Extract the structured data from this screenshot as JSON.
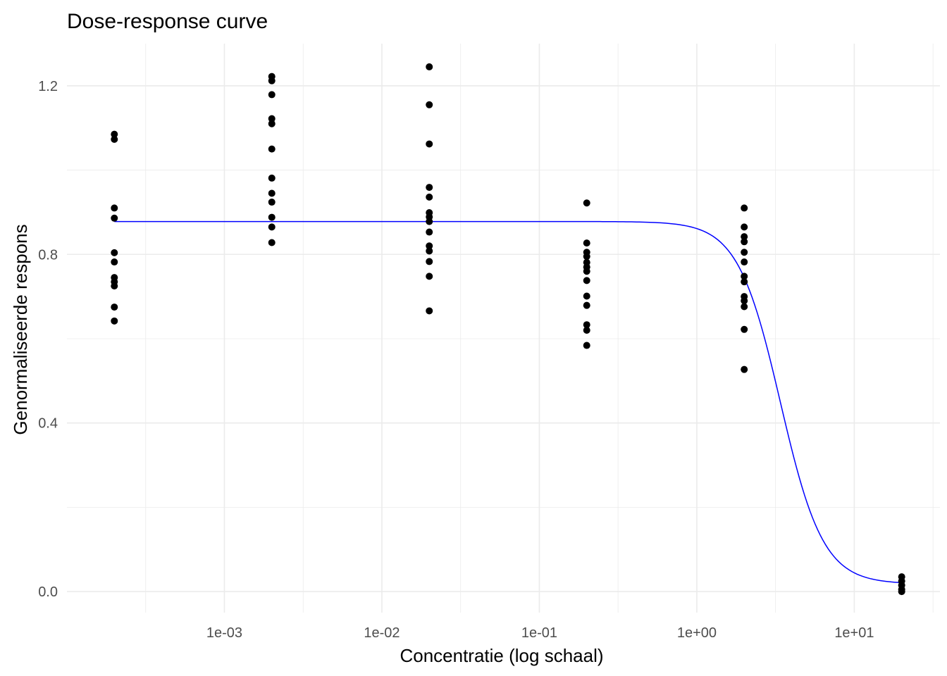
{
  "chart_data": {
    "type": "scatter",
    "title": "Dose-response curve",
    "xlabel": "Concentratie (log schaal)",
    "ylabel": "Genormaliseerde respons",
    "x_scale": "log10",
    "xlim": [
      0.0001,
      35
    ],
    "ylim": [
      -0.05,
      1.3
    ],
    "x_ticks": [
      {
        "value": 0.001,
        "label": "1e-03"
      },
      {
        "value": 0.01,
        "label": "1e-02"
      },
      {
        "value": 0.1,
        "label": "1e-01"
      },
      {
        "value": 1,
        "label": "1e+00"
      },
      {
        "value": 10,
        "label": "1e+01"
      }
    ],
    "y_ticks": [
      {
        "value": 0.0,
        "label": "0.0"
      },
      {
        "value": 0.4,
        "label": "0.4"
      },
      {
        "value": 0.8,
        "label": "0.8"
      },
      {
        "value": 1.2,
        "label": "1.2"
      }
    ],
    "grid": true,
    "points_color": "#000000",
    "curve_color": "#0000ff",
    "points": [
      {
        "x": 0.0002,
        "y": [
          1.085,
          1.073,
          0.91,
          0.886,
          0.804,
          0.782,
          0.745,
          0.735,
          0.725,
          0.675,
          0.642
        ]
      },
      {
        "x": 0.002,
        "y": [
          1.222,
          1.212,
          1.179,
          1.122,
          1.11,
          1.05,
          0.981,
          0.945,
          0.924,
          0.888,
          0.865,
          0.828
        ]
      },
      {
        "x": 0.02,
        "y": [
          1.245,
          1.155,
          1.062,
          0.959,
          0.936,
          0.899,
          0.889,
          0.878,
          0.853,
          0.82,
          0.808,
          0.783,
          0.748,
          0.666
        ]
      },
      {
        "x": 0.2,
        "y": [
          0.922,
          0.827,
          0.805,
          0.795,
          0.781,
          0.77,
          0.76,
          0.738,
          0.701,
          0.679,
          0.633,
          0.62,
          0.584
        ]
      },
      {
        "x": 2,
        "y": [
          0.91,
          0.865,
          0.842,
          0.83,
          0.805,
          0.782,
          0.748,
          0.735,
          0.7,
          0.69,
          0.676,
          0.622,
          0.527
        ]
      },
      {
        "x": 20,
        "y": [
          0.035,
          0.025,
          0.015,
          0.005,
          0.0
        ]
      }
    ],
    "curve": {
      "top": 0.878,
      "bottom": 0.018,
      "ec50": 3.4,
      "hill": 3.2,
      "x_range": [
        0.0002,
        20
      ]
    }
  }
}
